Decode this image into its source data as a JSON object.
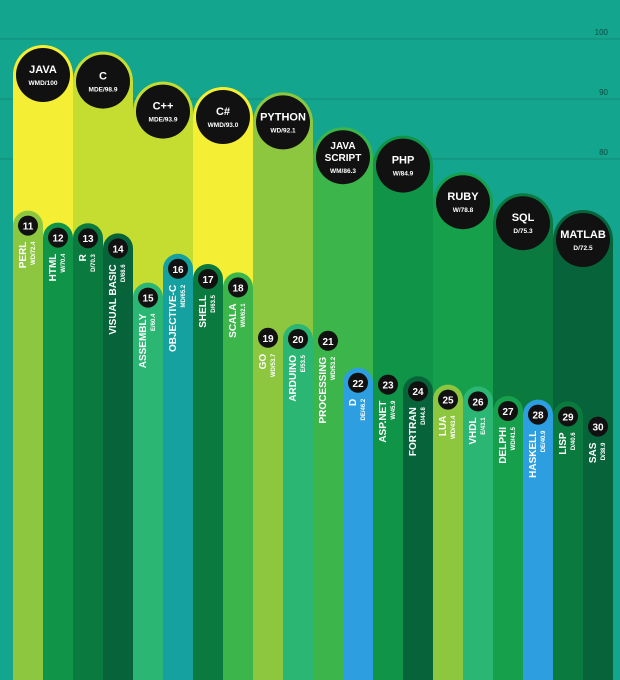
{
  "chart_data": {
    "type": "bar",
    "ylim": [
      30,
      100
    ],
    "ticks": [
      {
        "label": "100",
        "value": 100
      },
      {
        "label": "90",
        "value": 90
      },
      {
        "label": "80",
        "value": 80
      }
    ],
    "bars": [
      {
        "rank": "",
        "name": "JAVA",
        "code": "WMD/100",
        "value": 100,
        "color": "#f4ef34"
      },
      {
        "rank": "",
        "name": "C",
        "code": "MDE/98.9",
        "value": 98.9,
        "color": "#c5dc31"
      },
      {
        "rank": "",
        "name": "C++",
        "code": "MDE/93.9",
        "value": 93.9,
        "color": "#c5dc31"
      },
      {
        "rank": "",
        "name": "C#",
        "code": "WMD/93.0",
        "value": 93.0,
        "color": "#f4ef34"
      },
      {
        "rank": "",
        "name": "PYTHON",
        "code": "WD/92.1",
        "value": 92.1,
        "color": "#8dc63f"
      },
      {
        "rank": "",
        "name": "JAVA SCRIPT",
        "code": "WM/86.3",
        "value": 86.3,
        "color": "#3cb54a"
      },
      {
        "rank": "",
        "name": "PHP",
        "code": "W/84.9",
        "value": 84.9,
        "color": "#109447"
      },
      {
        "rank": "",
        "name": "RUBY",
        "code": "W/78.8",
        "value": 78.8,
        "color": "#16a04c"
      },
      {
        "rank": "",
        "name": "SQL",
        "code": "D/75.3",
        "value": 75.3,
        "color": "#0b7a3e"
      },
      {
        "rank": "",
        "name": "MATLAB",
        "code": "D/72.5",
        "value": 72.5,
        "color": "#07643a"
      },
      {
        "rank": "11",
        "name": "PERL",
        "code": "WD/72.4",
        "value": 72.4,
        "color": "#8dc63f"
      },
      {
        "rank": "12",
        "name": "HTML",
        "code": "W/70.4",
        "value": 70.4,
        "color": "#109447"
      },
      {
        "rank": "13",
        "name": "R",
        "code": "D/70.3",
        "value": 70.3,
        "color": "#0b7a3e"
      },
      {
        "rank": "14",
        "name": "VISUAL BASIC",
        "code": "D/68.6",
        "value": 68.6,
        "color": "#07643a"
      },
      {
        "rank": "15",
        "name": "ASSEMBLY",
        "code": "E/60.4",
        "value": 60.4,
        "color": "#2cb673"
      },
      {
        "rank": "16",
        "name": "OBJECTIVE-C",
        "code": "MD/65.2",
        "value": 65.2,
        "color": "#15a1a0"
      },
      {
        "rank": "17",
        "name": "SHELL",
        "code": "D/63.5",
        "value": 63.5,
        "color": "#0b7a3e"
      },
      {
        "rank": "18",
        "name": "SCALA",
        "code": "WM/62.1",
        "value": 62.1,
        "color": "#3cb54a"
      },
      {
        "rank": "19",
        "name": "GO",
        "code": "WD/53.7",
        "value": 53.7,
        "color": "#8dc63f"
      },
      {
        "rank": "20",
        "name": "ARDUINO",
        "code": "E/53.5",
        "value": 53.5,
        "color": "#2cb673"
      },
      {
        "rank": "21",
        "name": "PROCESSING",
        "code": "WD/53.2",
        "value": 53.2,
        "color": "#3cb54a"
      },
      {
        "rank": "22",
        "name": "D",
        "code": "DE/46.2",
        "value": 46.2,
        "color": "#2d9fe0"
      },
      {
        "rank": "23",
        "name": "ASP.NET",
        "code": "W/45.9",
        "value": 45.9,
        "color": "#109447"
      },
      {
        "rank": "24",
        "name": "FORTRAN",
        "code": "D/44.8",
        "value": 44.8,
        "color": "#07643a"
      },
      {
        "rank": "25",
        "name": "LUA",
        "code": "WD/43.4",
        "value": 43.4,
        "color": "#8dc63f"
      },
      {
        "rank": "26",
        "name": "VHDL",
        "code": "E/43.1",
        "value": 43.1,
        "color": "#2cb673"
      },
      {
        "rank": "27",
        "name": "DELPHI",
        "code": "WD/41.5",
        "value": 41.5,
        "color": "#16a04c"
      },
      {
        "rank": "28",
        "name": "HASKELL",
        "code": "DE/40.9",
        "value": 40.9,
        "color": "#2d9fe0"
      },
      {
        "rank": "29",
        "name": "LISP",
        "code": "D/40.6",
        "value": 40.6,
        "color": "#0b7a3e"
      },
      {
        "rank": "30",
        "name": "SAS",
        "code": "D/38.9",
        "value": 38.9,
        "color": "#07643a"
      }
    ]
  }
}
